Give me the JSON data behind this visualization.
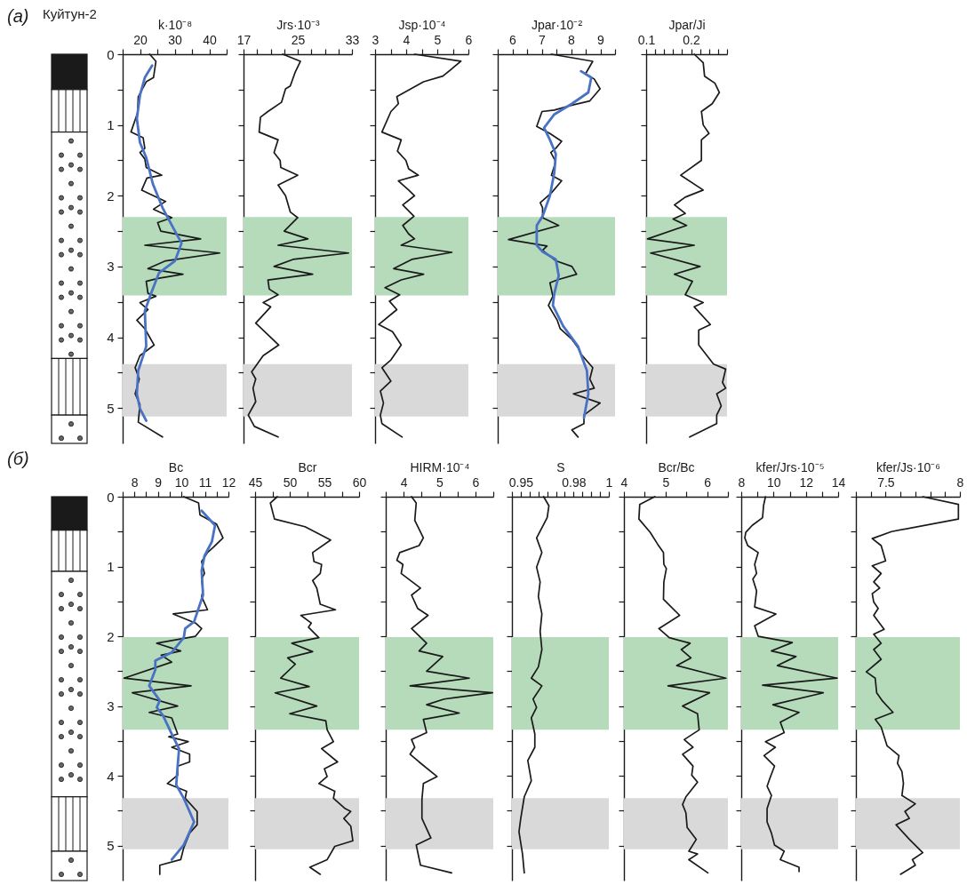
{
  "chart_data": [
    {
      "type": "line",
      "xlabel": "k·10⁻⁸",
      "annotations": [
        "(а)",
        "Куйтун-2"
      ],
      "xlim": [
        15,
        45
      ],
      "xticks": [
        {
          "value": 15,
          "label": null
        },
        20,
        {
          "value": 25,
          "label": null
        },
        30,
        {
          "value": 35,
          "label": null
        },
        40,
        {
          "value": 45,
          "label": null
        }
      ],
      "ylim": [
        5.5,
        0
      ],
      "yticks": [
        0,
        {
          "value": 0.5,
          "label": null
        },
        1,
        {
          "value": 1.5,
          "label": null
        },
        2,
        {
          "value": 2.5,
          "label": null
        },
        3,
        {
          "value": 3.5,
          "label": null
        },
        4,
        {
          "value": 4.5,
          "label": null
        },
        5
      ],
      "bands": [
        {
          "axis": "y",
          "from": 2.3,
          "to": 3.41,
          "color": "#b5dbbb"
        },
        {
          "axis": "y",
          "from": 4.38,
          "to": 5.12,
          "color": "#d9d9d9"
        }
      ],
      "series": [
        {
          "color": "#1a1a1a",
          "x": [
            22.8,
            24.6,
            23.9,
            21.8,
            19.5,
            19.3,
            17.4,
            20.9,
            21.4,
            20.0,
            21.4,
            21.8,
            26.3,
            22.0,
            20.5,
            27.4,
            23.9,
            29.2,
            25.1,
            26.0,
            37.5,
            21.4,
            43.0,
            27.4,
            22.3,
            32.4,
            25.1,
            21.8,
            22.3,
            24.6,
            20.0,
            22.3,
            19.1,
            21.4,
            24.1,
            20.0,
            18.6,
            19.8,
            18.6,
            20.0,
            19.5,
            26.5
          ],
          "values": [
            0,
            0.1,
            0.33,
            0.39,
            0.6,
            0.83,
            1.1,
            1.18,
            1.33,
            1.39,
            1.48,
            1.6,
            1.71,
            1.75,
            1.92,
            2.08,
            2.19,
            2.31,
            2.38,
            2.5,
            2.61,
            2.7,
            2.81,
            2.92,
            3.03,
            3.11,
            3.17,
            3.21,
            3.38,
            3.42,
            3.51,
            3.61,
            3.76,
            3.88,
            4.11,
            4.26,
            4.43,
            4.59,
            4.8,
            4.95,
            5.2,
            5.41
          ]
        },
        {
          "color": "#4a72c4",
          "x": [
            23.5,
            21.4,
            20,
            19.1,
            20,
            21.8,
            23.7,
            26.5,
            29.2,
            32,
            30.1,
            25.5,
            23.2,
            21.4,
            21.8,
            19.5,
            19.1,
            20,
            21.8
          ],
          "values": [
            0.16,
            0.33,
            0.58,
            0.91,
            1.25,
            1.46,
            1.83,
            2.17,
            2.42,
            2.67,
            2.92,
            3.09,
            3.38,
            3.63,
            4.13,
            4.47,
            4.8,
            5.01,
            5.18
          ]
        }
      ]
    },
    {
      "type": "line",
      "xlabel": "Jrs·10⁻³",
      "tick_labels": "x",
      "xlim": [
        17,
        33
      ],
      "xticks": [
        17,
        {
          "value": 19,
          "label": null
        },
        {
          "value": 21,
          "label": null
        },
        {
          "value": 23,
          "label": null
        },
        25,
        {
          "value": 27,
          "label": null
        },
        {
          "value": 29,
          "label": null
        },
        {
          "value": 31,
          "label": null
        },
        33
      ],
      "ylim": [
        5.5,
        0
      ],
      "yticks": [
        0,
        {
          "value": 0.5,
          "label": null
        },
        1,
        {
          "value": 1.5,
          "label": null
        },
        2,
        {
          "value": 2.5,
          "label": null
        },
        3,
        {
          "value": 3.5,
          "label": null
        },
        4,
        {
          "value": 4.5,
          "label": null
        },
        5
      ],
      "bands": [
        {
          "axis": "y",
          "from": 2.3,
          "to": 3.41,
          "color": "#b5dbbb"
        },
        {
          "axis": "y",
          "from": 4.38,
          "to": 5.12,
          "color": "#d9d9d9"
        }
      ],
      "series": [
        {
          "color": "#1a1a1a",
          "x": [
            22.8,
            25.4,
            24.6,
            23.9,
            23.2,
            22.6,
            20.6,
            19.5,
            19.3,
            22.1,
            21.5,
            22.4,
            22.5,
            25.0,
            22.1,
            23.2,
            23.9,
            25.0,
            23.0,
            26.5,
            22.1,
            32.5,
            24.3,
            21.5,
            27.2,
            20.6,
            20.8,
            22.1,
            19.9,
            21.0,
            18.8,
            22.2,
            19.9,
            18.2,
            18.8,
            18.4,
            18.8,
            17.7,
            18.6,
            22.1
          ],
          "values": [
            0,
            0.1,
            0.26,
            0.45,
            0.49,
            0.68,
            0.81,
            0.89,
            1.1,
            1.21,
            1.39,
            1.5,
            1.6,
            1.71,
            1.85,
            2.0,
            2.23,
            2.31,
            2.5,
            2.61,
            2.7,
            2.81,
            2.9,
            3.0,
            3.11,
            3.19,
            3.32,
            3.4,
            3.51,
            3.57,
            3.8,
            4.11,
            4.26,
            4.49,
            4.59,
            4.72,
            4.91,
            5.1,
            5.26,
            5.41
          ]
        }
      ]
    },
    {
      "type": "line",
      "xlabel": "Jsp·10⁻⁴",
      "tick_labels": "x",
      "xlim": [
        3,
        6
      ],
      "xticks": [
        3,
        {
          "value": 3.5,
          "label": null
        },
        4,
        {
          "value": 4.5,
          "label": null
        },
        5,
        {
          "value": 5.5,
          "label": null
        },
        6
      ],
      "ylim": [
        5.5,
        0
      ],
      "yticks": [
        0,
        {
          "value": 0.5,
          "label": null
        },
        1,
        {
          "value": 1.5,
          "label": null
        },
        2,
        {
          "value": 2.5,
          "label": null
        },
        3,
        {
          "value": 3.5,
          "label": null
        },
        4,
        {
          "value": 4.5,
          "label": null
        },
        5
      ],
      "bands": [
        {
          "axis": "y",
          "from": 2.3,
          "to": 3.41,
          "color": "#b5dbbb"
        },
        {
          "axis": "y",
          "from": 4.38,
          "to": 5.12,
          "color": "#d9d9d9"
        }
      ],
      "series": [
        {
          "color": "#1a1a1a",
          "x": [
            4.27,
            5.76,
            5.18,
            4.56,
            3.7,
            3.75,
            3.51,
            3.22,
            3.84,
            3.72,
            3.99,
            4.08,
            4.39,
            3.75,
            4.08,
            4.27,
            3.89,
            4.25,
            3.89,
            4.08,
            4.27,
            3.84,
            5.47,
            4.18,
            3.6,
            4.56,
            3.84,
            3.32,
            3.79,
            3.46,
            3.7,
            3.12,
            3.56,
            3.84,
            3.51,
            3.22,
            3.51,
            3.17,
            3.27,
            3.17,
            3.22,
            3.87
          ],
          "values": [
            0,
            0.1,
            0.31,
            0.39,
            0.6,
            0.7,
            0.81,
            1.1,
            1.21,
            1.37,
            1.5,
            1.62,
            1.71,
            1.79,
            1.92,
            2.0,
            2.13,
            2.29,
            2.42,
            2.54,
            2.61,
            2.7,
            2.8,
            2.9,
            3.03,
            3.11,
            3.19,
            3.3,
            3.4,
            3.49,
            3.61,
            3.82,
            3.92,
            4.11,
            4.32,
            4.43,
            4.62,
            4.76,
            4.93,
            5.1,
            5.22,
            5.41
          ]
        }
      ]
    },
    {
      "type": "line",
      "xlabel": "Jpar·10⁻²",
      "tick_labels": "x",
      "xlim": [
        5.5,
        9.5
      ],
      "xticks": [
        {
          "value": 5.5,
          "label": null
        },
        6,
        {
          "value": 6.5,
          "label": null
        },
        7,
        {
          "value": 7.5,
          "label": null
        },
        8,
        {
          "value": 8.5,
          "label": null
        },
        9,
        {
          "value": 9.5,
          "label": null
        }
      ],
      "ylim": [
        5.5,
        0
      ],
      "yticks": [
        0,
        {
          "value": 0.5,
          "label": null
        },
        1,
        {
          "value": 1.5,
          "label": null
        },
        2,
        {
          "value": 2.5,
          "label": null
        },
        3,
        {
          "value": 3.5,
          "label": null
        },
        4,
        {
          "value": 4.5,
          "label": null
        },
        5
      ],
      "bands": [
        {
          "axis": "y",
          "from": 2.3,
          "to": 3.41,
          "color": "#b5dbbb"
        },
        {
          "axis": "y",
          "from": 4.38,
          "to": 5.12,
          "color": "#d9d9d9"
        }
      ],
      "series": [
        {
          "color": "#1a1a1a",
          "x": [
            7.33,
            8.74,
            8.49,
            8.79,
            8.99,
            8.64,
            8.03,
            7.43,
            7.01,
            6.83,
            7.28,
            7.68,
            7.48,
            7.31,
            7.48,
            7.33,
            7.68,
            7.33,
            6.95,
            7.03,
            7.03,
            7.58,
            5.87,
            7.18,
            7.03,
            7.48,
            8.03,
            8.19,
            7.53,
            7.28,
            7.38,
            7.23,
            7.53,
            7.63,
            8.03,
            8.24,
            8.34,
            8.74,
            8.64,
            8.79,
            8.08,
            8.99,
            8.44,
            8.44,
            8.03,
            8.24
          ],
          "values": [
            0,
            0.1,
            0.28,
            0.35,
            0.49,
            0.66,
            0.72,
            0.79,
            0.81,
            1.02,
            1.12,
            1.23,
            1.33,
            1.39,
            1.52,
            1.71,
            1.79,
            1.96,
            2.1,
            2.17,
            2.31,
            2.42,
            2.62,
            2.71,
            2.77,
            2.92,
            3.0,
            3.11,
            3.19,
            3.23,
            3.42,
            3.55,
            3.76,
            3.88,
            4.03,
            4.15,
            4.24,
            4.43,
            4.59,
            4.72,
            4.8,
            4.93,
            5.1,
            5.22,
            5.31,
            5.41
          ]
        },
        {
          "color": "#4a72c4",
          "x": [
            8.34,
            8.69,
            8.59,
            8.03,
            7.43,
            7.08,
            7.28,
            7.48,
            7.43,
            7.28,
            7.03,
            6.83,
            6.83,
            7.03,
            7.48,
            7.58,
            7.43,
            7.38,
            7.73,
            8.24,
            8.54,
            8.59,
            8.44
          ],
          "values": [
            0.24,
            0.33,
            0.54,
            0.7,
            0.85,
            1.04,
            1.21,
            1.41,
            1.67,
            2.0,
            2.29,
            2.42,
            2.7,
            2.79,
            2.9,
            3.13,
            3.38,
            3.55,
            3.84,
            4.13,
            4.47,
            4.8,
            5.14
          ]
        }
      ]
    },
    {
      "type": "line",
      "xlabel": "Jpar/Ji",
      "tick_labels": "x",
      "xlim": [
        0.1,
        0.28
      ],
      "xticks": [
        0.1,
        {
          "value": 0.12,
          "label": null
        },
        {
          "value": 0.14,
          "label": null
        },
        {
          "value": 0.16,
          "label": null
        },
        {
          "value": 0.18,
          "label": null
        },
        0.2,
        {
          "value": 0.22,
          "label": null
        },
        {
          "value": 0.24,
          "label": null
        },
        {
          "value": 0.26,
          "label": null
        },
        {
          "value": 0.28,
          "label": null
        }
      ],
      "ylim": [
        5.5,
        0
      ],
      "yticks": [
        0,
        {
          "value": 0.5,
          "label": null
        },
        1,
        {
          "value": 1.5,
          "label": null
        },
        2,
        {
          "value": 2.5,
          "label": null
        },
        3,
        {
          "value": 3.5,
          "label": null
        },
        4,
        {
          "value": 4.5,
          "label": null
        },
        5
      ],
      "bands": [
        {
          "axis": "y",
          "from": 2.3,
          "to": 3.41,
          "color": "#b5dbbb"
        },
        {
          "axis": "y",
          "from": 4.38,
          "to": 5.12,
          "color": "#d9d9d9"
        }
      ],
      "series": [
        {
          "color": "#1a1a1a",
          "x": [
            0.207,
            0.227,
            0.23,
            0.253,
            0.263,
            0.247,
            0.223,
            0.227,
            0.24,
            0.223,
            0.223,
            0.177,
            0.227,
            0.187,
            0.163,
            0.187,
            0.16,
            0.19,
            0.103,
            0.207,
            0.11,
            0.22,
            0.163,
            0.203,
            0.187,
            0.227,
            0.207,
            0.243,
            0.217,
            0.217,
            0.25,
            0.277,
            0.27,
            0.277,
            0.257,
            0.267,
            0.257,
            0.257,
            0.197
          ],
          "values": [
            0,
            0.12,
            0.31,
            0.41,
            0.54,
            0.7,
            0.81,
            1.0,
            1.12,
            1.21,
            1.5,
            1.71,
            1.92,
            2.02,
            2.13,
            2.25,
            2.33,
            2.42,
            2.61,
            2.7,
            2.81,
            3.0,
            3.11,
            3.21,
            3.4,
            3.51,
            3.57,
            3.82,
            3.9,
            4.11,
            4.38,
            4.45,
            4.64,
            4.72,
            4.8,
            4.97,
            5.1,
            5.22,
            5.41
          ]
        }
      ]
    },
    {
      "type": "line",
      "xlabel": "Bc",
      "annotations": [
        "(б)"
      ],
      "xlim": [
        7.5,
        12
      ],
      "xticks": [
        {
          "value": 7.5,
          "label": null
        },
        8,
        {
          "value": 8.5,
          "label": null
        },
        9,
        {
          "value": 9.5,
          "label": null
        },
        10,
        {
          "value": 10.5,
          "label": null
        },
        11,
        {
          "value": 11.5,
          "label": null
        },
        12
      ],
      "ylim": [
        5.5,
        0
      ],
      "yticks": [
        0,
        {
          "value": 0.5,
          "label": null
        },
        1,
        {
          "value": 1.5,
          "label": null
        },
        2,
        {
          "value": 2.5,
          "label": null
        },
        3,
        {
          "value": 3.5,
          "label": null
        },
        4,
        {
          "value": 4.5,
          "label": null
        },
        5
      ],
      "bands": [
        {
          "axis": "y",
          "from": 2.01,
          "to": 3.34,
          "color": "#b5dbbb"
        },
        {
          "axis": "y",
          "from": 4.32,
          "to": 5.05,
          "color": "#d9d9d9"
        }
      ],
      "series": [
        {
          "color": "#1a1a1a",
          "x": [
            10.1,
            10.73,
            10.79,
            11.49,
            11.77,
            11.37,
            11.11,
            10.86,
            10.98,
            10.86,
            10.92,
            10.86,
            11.11,
            9.65,
            10.6,
            10.86,
            10.6,
            8.95,
            9.97,
            9.14,
            9.59,
            7.56,
            10.41,
            7.91,
            9.84,
            8.63,
            9.59,
            9.84,
            9.46,
            10.29,
            9.59,
            10.35,
            10.35,
            9.84,
            9.84,
            9.4,
            10.22,
            10.16,
            10.67,
            10.67,
            10.35,
            10.1,
            9.97,
            9.08,
            9.08
          ],
          "values": [
            0,
            0.09,
            0.26,
            0.39,
            0.59,
            0.72,
            0.8,
            0.93,
            1.1,
            1.18,
            1.35,
            1.43,
            1.62,
            1.68,
            1.81,
            1.89,
            2.0,
            2.1,
            2.21,
            2.27,
            2.37,
            2.6,
            2.71,
            2.81,
            3.0,
            3.09,
            3.17,
            3.4,
            3.44,
            3.51,
            3.59,
            3.69,
            3.8,
            3.86,
            3.99,
            4.11,
            4.22,
            4.32,
            4.51,
            4.7,
            4.82,
            5.03,
            5.2,
            5.28,
            5.41
          ]
        },
        {
          "color": "#4a72c4",
          "x": [
            10.86,
            11.43,
            11.3,
            10.98,
            10.86,
            10.92,
            10.73,
            10.54,
            10.16,
            10.1,
            9.59,
            8.89,
            8.89,
            8.63,
            9.08,
            8.95,
            9.21,
            9.59,
            9.9,
            9.84,
            9.78,
            10.1,
            10.54,
            10.1,
            9.59
          ],
          "values": [
            0.2,
            0.41,
            0.64,
            0.85,
            1.06,
            1.41,
            1.6,
            1.79,
            1.89,
            2.02,
            2.23,
            2.35,
            2.48,
            2.71,
            2.92,
            3.02,
            3.13,
            3.4,
            3.61,
            3.86,
            4.13,
            4.32,
            4.66,
            4.99,
            5.2
          ]
        }
      ]
    },
    {
      "type": "line",
      "xlabel": "Bcr",
      "tick_labels": "x",
      "xlim": [
        45,
        60
      ],
      "xticks": [
        45,
        {
          "value": 47.5,
          "label": null
        },
        50,
        {
          "value": 52.5,
          "label": null
        },
        55,
        {
          "value": 57.5,
          "label": null
        },
        60
      ],
      "ylim": [
        5.5,
        0
      ],
      "yticks": [
        0,
        {
          "value": 0.5,
          "label": null
        },
        1,
        {
          "value": 1.5,
          "label": null
        },
        2,
        {
          "value": 2.5,
          "label": null
        },
        3,
        {
          "value": 3.5,
          "label": null
        },
        4,
        {
          "value": 4.5,
          "label": null
        },
        5
      ],
      "bands": [
        {
          "axis": "y",
          "from": 2.01,
          "to": 3.34,
          "color": "#b5dbbb"
        },
        {
          "axis": "y",
          "from": 4.32,
          "to": 5.05,
          "color": "#d9d9d9"
        }
      ],
      "series": [
        {
          "color": "#1a1a1a",
          "x": [
            48.2,
            47.2,
            47.8,
            52.2,
            55.9,
            53.3,
            53.5,
            54.6,
            54.4,
            53.3,
            53.9,
            54.4,
            56.6,
            51.6,
            53.1,
            52.7,
            54.2,
            50.3,
            53.3,
            49.7,
            50.8,
            48.7,
            52.8,
            47.9,
            53.9,
            50.0,
            55.2,
            55.4,
            56.3,
            54.6,
            56.9,
            55.0,
            55.4,
            54.2,
            56.5,
            56.3,
            58.0,
            58.8,
            57.8,
            58.8,
            59.1,
            56.5,
            55.4,
            52.9,
            54.4
          ],
          "values": [
            0,
            0.09,
            0.32,
            0.43,
            0.62,
            0.8,
            0.93,
            0.97,
            1.1,
            1.2,
            1.31,
            1.54,
            1.62,
            1.7,
            1.81,
            1.87,
            2.02,
            2.1,
            2.22,
            2.31,
            2.4,
            2.6,
            2.72,
            2.81,
            3.0,
            3.11,
            3.21,
            3.34,
            3.51,
            3.61,
            3.8,
            3.9,
            4.01,
            4.11,
            4.22,
            4.32,
            4.47,
            4.51,
            4.61,
            4.72,
            4.93,
            5.01,
            5.2,
            5.31,
            5.41
          ]
        }
      ]
    },
    {
      "type": "line",
      "xlabel": "HIRM·10⁻⁴",
      "tick_labels": "x",
      "xlim": [
        3.5,
        6.5
      ],
      "xticks": [
        {
          "value": 3.5,
          "label": null
        },
        4,
        {
          "value": 4.5,
          "label": null
        },
        5,
        {
          "value": 5.5,
          "label": null
        },
        6,
        {
          "value": 6.5,
          "label": null
        }
      ],
      "ylim": [
        5.5,
        0
      ],
      "yticks": [
        0,
        {
          "value": 0.5,
          "label": null
        },
        1,
        {
          "value": 1.5,
          "label": null
        },
        2,
        {
          "value": 2.5,
          "label": null
        },
        3,
        {
          "value": 3.5,
          "label": null
        },
        4,
        {
          "value": 4.5,
          "label": null
        },
        5
      ],
      "bands": [
        {
          "axis": "y",
          "from": 2.01,
          "to": 3.34,
          "color": "#b5dbbb"
        },
        {
          "axis": "y",
          "from": 4.32,
          "to": 5.05,
          "color": "#d9d9d9"
        }
      ],
      "series": [
        {
          "color": "#1a1a1a",
          "x": [
            4.22,
            4.35,
            4.31,
            4.55,
            4.43,
            3.89,
            3.81,
            3.98,
            3.93,
            4.47,
            4.22,
            4.39,
            4.68,
            4.22,
            4.64,
            4.43,
            5.09,
            4.64,
            5.83,
            4.18,
            6.48,
            5.13,
            4.64,
            5.55,
            4.55,
            4.64,
            4.22,
            4.31,
            4.18,
            4.43,
            4.93,
            4.55,
            4.51,
            4.51,
            4.76,
            4.35,
            4.47,
            5.34
          ],
          "values": [
            0,
            0.09,
            0.34,
            0.59,
            0.7,
            0.8,
            0.91,
            0.97,
            1.1,
            1.31,
            1.41,
            1.6,
            1.7,
            1.89,
            2.1,
            2.21,
            2.29,
            2.5,
            2.6,
            2.71,
            2.81,
            2.9,
            2.98,
            3.1,
            3.19,
            3.38,
            3.48,
            3.59,
            3.69,
            3.8,
            4.01,
            4.11,
            4.34,
            4.61,
            4.89,
            4.99,
            5.28,
            5.39
          ]
        }
      ]
    },
    {
      "type": "line",
      "xlabel": "S",
      "tick_labels": "x",
      "xlim": [
        0.945,
        1
      ],
      "xticks": [
        {
          "value": 0.945,
          "label": null
        },
        0.95,
        {
          "value": 0.955,
          "label": null
        },
        {
          "value": 0.96,
          "label": null
        },
        {
          "value": 0.965,
          "label": null
        },
        {
          "value": 0.97,
          "label": null
        },
        {
          "value": 0.975,
          "label": null
        },
        0.98,
        {
          "value": 0.985,
          "label": null
        },
        {
          "value": 0.99,
          "label": null
        },
        {
          "value": 0.995,
          "label": null
        },
        1
      ],
      "ylim": [
        5.5,
        0
      ],
      "yticks": [
        0,
        {
          "value": 0.5,
          "label": null
        },
        1,
        {
          "value": 1.5,
          "label": null
        },
        2,
        {
          "value": 2.5,
          "label": null
        },
        3,
        {
          "value": 3.5,
          "label": null
        },
        4,
        {
          "value": 4.5,
          "label": null
        },
        5
      ],
      "bands": [
        {
          "axis": "y",
          "from": 2.01,
          "to": 3.34,
          "color": "#b5dbbb"
        },
        {
          "axis": "y",
          "from": 4.32,
          "to": 5.05,
          "color": "#d9d9d9"
        }
      ],
      "series": [
        {
          "color": "#1a1a1a",
          "x": [
            0.963,
            0.966,
            0.965,
            0.959,
            0.962,
            0.959,
            0.961,
            0.96,
            0.962,
            0.961,
            0.962,
            0.96,
            0.956,
            0.962,
            0.957,
            0.959,
            0.956,
            0.958,
            0.958,
            0.954,
            0.956,
            0.952,
            0.95,
            0.949,
            0.951,
            0.952
          ],
          "values": [
            0,
            0.13,
            0.3,
            0.59,
            0.8,
            1.01,
            1.22,
            1.43,
            1.68,
            1.93,
            2.19,
            2.44,
            2.6,
            2.71,
            2.9,
            3.02,
            3.17,
            3.4,
            3.59,
            3.78,
            4.07,
            4.3,
            4.61,
            4.8,
            5.12,
            5.39
          ]
        }
      ]
    },
    {
      "type": "line",
      "xlabel": "Bcr/Bc",
      "tick_labels": "x",
      "xlim": [
        4,
        6.5
      ],
      "xticks": [
        4,
        {
          "value": 4.5,
          "label": null
        },
        5,
        {
          "value": 5.5,
          "label": null
        },
        6,
        {
          "value": 6.5,
          "label": null
        }
      ],
      "ylim": [
        5.5,
        0
      ],
      "yticks": [
        0,
        {
          "value": 0.5,
          "label": null
        },
        1,
        {
          "value": 1.5,
          "label": null
        },
        2,
        {
          "value": 2.5,
          "label": null
        },
        3,
        {
          "value": 3.5,
          "label": null
        },
        4,
        {
          "value": 4.5,
          "label": null
        },
        5
      ],
      "bands": [
        {
          "axis": "y",
          "from": 2.01,
          "to": 3.34,
          "color": "#b5dbbb"
        },
        {
          "axis": "y",
          "from": 4.32,
          "to": 5.05,
          "color": "#d9d9d9"
        }
      ],
      "series": [
        {
          "color": "#1a1a1a",
          "x": [
            4.74,
            4.38,
            4.36,
            4.63,
            4.81,
            4.95,
            4.96,
            5.02,
            4.96,
            4.95,
            5.34,
            4.84,
            5.09,
            5.59,
            5.38,
            5.61,
            5.27,
            6.45,
            5.06,
            6.06,
            5.41,
            5.77,
            5.81,
            5.45,
            5.66,
            5.41,
            5.66,
            5.63,
            5.77,
            5.49,
            5.41,
            5.49,
            5.52,
            5.74,
            5.56,
            5.77,
            5.56,
            6.02
          ],
          "values": [
            0,
            0.11,
            0.32,
            0.51,
            0.68,
            0.8,
            0.97,
            1.03,
            1.22,
            1.47,
            1.7,
            1.89,
            2.02,
            2.1,
            2.19,
            2.31,
            2.42,
            2.6,
            2.71,
            2.81,
            3.0,
            3.11,
            3.34,
            3.48,
            3.59,
            3.69,
            3.86,
            3.99,
            4.09,
            4.3,
            4.41,
            4.53,
            4.74,
            4.91,
            5.08,
            5.12,
            5.2,
            5.39
          ]
        }
      ]
    },
    {
      "type": "line",
      "xlabel": "kfer/Jrs·10⁻⁵",
      "tick_labels": "x",
      "xlim": [
        8,
        14
      ],
      "xticks": [
        8,
        {
          "value": 9,
          "label": null
        },
        10,
        {
          "value": 11,
          "label": null
        },
        12,
        {
          "value": 13,
          "label": null
        },
        14
      ],
      "ylim": [
        5.5,
        0
      ],
      "yticks": [
        0,
        {
          "value": 0.5,
          "label": null
        },
        1,
        {
          "value": 1.5,
          "label": null
        },
        2,
        {
          "value": 2.5,
          "label": null
        },
        3,
        {
          "value": 3.5,
          "label": null
        },
        4,
        {
          "value": 4.5,
          "label": null
        },
        5
      ],
      "bands": [
        {
          "axis": "y",
          "from": 2.01,
          "to": 3.34,
          "color": "#b5dbbb"
        },
        {
          "axis": "y",
          "from": 4.32,
          "to": 5.05,
          "color": "#d9d9d9"
        }
      ],
      "series": [
        {
          "color": "#1a1a1a",
          "x": [
            9.5,
            9.38,
            9.32,
            8.68,
            8.28,
            8.22,
            8.4,
            9.05,
            8.83,
            8.95,
            8.72,
            8.95,
            8.83,
            10.15,
            8.83,
            9.05,
            11.16,
            9.87,
            11.39,
            10.24,
            13.94,
            9.32,
            13.08,
            9.96,
            11.58,
            10.42,
            10.66,
            9.5,
            10.11,
            9.41,
            10.06,
            9.78,
            9.6,
            9.87,
            9.6,
            9.6,
            9.87,
            10.06,
            10.66,
            10.42,
            11.58,
            11.58
          ],
          "values": [
            0,
            0.13,
            0.3,
            0.41,
            0.51,
            0.59,
            0.7,
            0.8,
            0.97,
            1.1,
            1.18,
            1.35,
            1.58,
            1.68,
            1.85,
            2.0,
            2.09,
            2.21,
            2.29,
            2.42,
            2.6,
            2.7,
            2.81,
            2.98,
            3.09,
            3.23,
            3.38,
            3.51,
            3.59,
            3.71,
            3.86,
            4.03,
            4.15,
            4.28,
            4.47,
            4.66,
            4.82,
            4.99,
            5.08,
            5.2,
            5.31,
            5.37
          ]
        }
      ]
    },
    {
      "type": "line",
      "xlabel": "kfer/Js·10⁻⁶",
      "tick_labels": "x",
      "xlim": [
        7.3,
        8
      ],
      "xticks": [
        {
          "value": 7.3,
          "label": null
        },
        {
          "value": 7.4,
          "label": null
        },
        7.5,
        {
          "value": 7.6,
          "label": null
        },
        {
          "value": 7.7,
          "label": null
        },
        {
          "value": 7.8,
          "label": null
        },
        {
          "value": 7.9,
          "label": null
        },
        8
      ],
      "ylim": [
        5.5,
        0
      ],
      "yticks": [
        0,
        {
          "value": 0.5,
          "label": null
        },
        1,
        {
          "value": 1.5,
          "label": null
        },
        2,
        {
          "value": 2.5,
          "label": null
        },
        3,
        {
          "value": 3.5,
          "label": null
        },
        4,
        {
          "value": 4.5,
          "label": null
        },
        5
      ],
      "bands": [
        {
          "axis": "y",
          "from": 2.01,
          "to": 3.34,
          "color": "#b5dbbb"
        },
        {
          "axis": "y",
          "from": 4.32,
          "to": 5.05,
          "color": "#d9d9d9"
        }
      ],
      "series": [
        {
          "color": "#1a1a1a",
          "x": [
            7.75,
            7.99,
            7.99,
            7.54,
            7.41,
            7.47,
            7.5,
            7.41,
            7.47,
            7.42,
            7.46,
            7.41,
            7.42,
            7.45,
            7.42,
            7.49,
            7.42,
            7.47,
            7.42,
            7.47,
            7.37,
            7.43,
            7.44,
            7.48,
            7.55,
            7.43,
            7.47,
            7.51,
            7.59,
            7.58,
            7.61,
            7.62,
            7.61,
            7.7,
            7.63,
            7.66,
            7.57,
            7.66,
            7.75,
            7.68,
            7.7,
            7.6
          ],
          "values": [
            0,
            0.11,
            0.32,
            0.5,
            0.6,
            0.7,
            0.92,
            0.99,
            1.1,
            1.22,
            1.31,
            1.39,
            1.51,
            1.6,
            1.7,
            1.9,
            1.97,
            2.1,
            2.19,
            2.33,
            2.51,
            2.6,
            2.81,
            2.93,
            3.09,
            3.19,
            3.3,
            3.57,
            3.71,
            3.82,
            3.94,
            4.11,
            4.28,
            4.4,
            4.51,
            4.61,
            4.7,
            4.91,
            5.1,
            5.2,
            5.28,
            5.41
          ]
        }
      ]
    }
  ]
}
